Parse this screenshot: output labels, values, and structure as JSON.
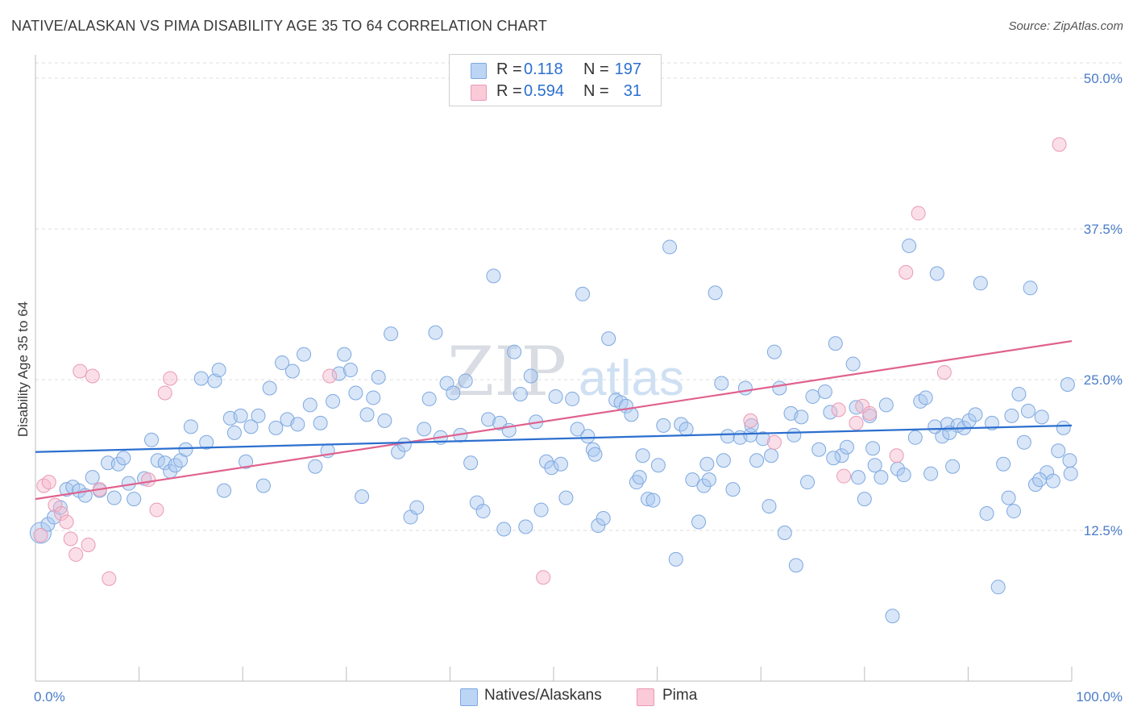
{
  "header": {
    "title": "NATIVE/ALASKAN VS PIMA DISABILITY AGE 35 TO 64 CORRELATION CHART",
    "source": "Source: ZipAtlas.com"
  },
  "watermark": {
    "part1": "ZIP",
    "part2": "atlas"
  },
  "legend": {
    "rows": [
      {
        "r_label": "R =",
        "r_value": "0.118",
        "n_label": "N =",
        "n_value": "197",
        "color": "#a9c8f0"
      },
      {
        "r_label": "R =",
        "r_value": "0.594",
        "n_label": "N =",
        "n_value": "31",
        "color": "#f6b8cb"
      }
    ]
  },
  "bottom_legend": {
    "series1": "Natives/Alaskans",
    "series2": "Pima"
  },
  "chart_data": {
    "type": "scatter",
    "title": "NATIVE/ALASKAN VS PIMA DISABILITY AGE 35 TO 64 CORRELATION CHART",
    "ylabel": "Disability Age 35 to 64",
    "xlabel": "",
    "x_tick_labels": [
      "0.0%",
      "100.0%"
    ],
    "y_tick_labels": [
      "12.5%",
      "25.0%",
      "37.5%",
      "50.0%"
    ],
    "y_ticks": [
      12.5,
      25.0,
      37.5,
      50.0
    ],
    "xlim": [
      0,
      100
    ],
    "ylim": [
      0,
      52
    ],
    "grid": "horizontal dashed",
    "legend_position": "top-center",
    "colors": {
      "natives": "#a9c8f0",
      "natives_line": "#2c6fcf",
      "pima": "#f6b8cb",
      "pima_line": "#e0628e",
      "tick_text": "#4a7cc9"
    },
    "series": [
      {
        "name": "Natives/Alaskans",
        "trend": {
          "x": [
            0,
            100
          ],
          "y": [
            19.0,
            21.2
          ]
        },
        "points": [
          [
            0.5,
            12.3
          ],
          [
            1.2,
            13.0
          ],
          [
            1.8,
            13.6
          ],
          [
            2.4,
            14.4
          ],
          [
            3.0,
            15.9
          ],
          [
            3.6,
            16.1
          ],
          [
            4.2,
            15.8
          ],
          [
            4.8,
            15.4
          ],
          [
            5.5,
            16.9
          ],
          [
            6.2,
            15.8
          ],
          [
            7.0,
            18.1
          ],
          [
            7.6,
            15.2
          ],
          [
            8.0,
            18.0
          ],
          [
            8.5,
            18.5
          ],
          [
            9.0,
            16.4
          ],
          [
            9.5,
            15.1
          ],
          [
            10.5,
            16.8
          ],
          [
            11.2,
            20.0
          ],
          [
            11.8,
            18.3
          ],
          [
            12.5,
            18.1
          ],
          [
            13.0,
            17.4
          ],
          [
            13.5,
            17.9
          ],
          [
            14.0,
            18.3
          ],
          [
            14.5,
            19.2
          ],
          [
            15.0,
            21.1
          ],
          [
            16.0,
            25.1
          ],
          [
            16.5,
            19.8
          ],
          [
            17.3,
            24.9
          ],
          [
            17.7,
            25.8
          ],
          [
            18.2,
            15.8
          ],
          [
            18.8,
            21.8
          ],
          [
            19.2,
            20.6
          ],
          [
            19.8,
            22.0
          ],
          [
            20.3,
            18.2
          ],
          [
            20.8,
            21.1
          ],
          [
            21.5,
            22.0
          ],
          [
            22.0,
            16.2
          ],
          [
            22.6,
            24.3
          ],
          [
            23.2,
            21.0
          ],
          [
            23.8,
            26.4
          ],
          [
            24.3,
            21.7
          ],
          [
            24.8,
            25.7
          ],
          [
            25.3,
            21.3
          ],
          [
            25.9,
            27.1
          ],
          [
            26.5,
            22.9
          ],
          [
            27.0,
            17.8
          ],
          [
            27.5,
            21.4
          ],
          [
            28.2,
            19.1
          ],
          [
            28.7,
            23.2
          ],
          [
            29.3,
            25.5
          ],
          [
            29.8,
            27.1
          ],
          [
            30.4,
            25.8
          ],
          [
            30.9,
            23.9
          ],
          [
            31.5,
            15.3
          ],
          [
            32.0,
            22.1
          ],
          [
            32.6,
            23.5
          ],
          [
            33.1,
            25.2
          ],
          [
            33.7,
            21.6
          ],
          [
            34.3,
            28.8
          ],
          [
            35.0,
            19.0
          ],
          [
            35.6,
            19.6
          ],
          [
            36.2,
            13.6
          ],
          [
            36.8,
            14.4
          ],
          [
            37.5,
            20.9
          ],
          [
            38.0,
            23.4
          ],
          [
            38.6,
            28.9
          ],
          [
            39.1,
            20.2
          ],
          [
            39.7,
            24.7
          ],
          [
            40.3,
            23.9
          ],
          [
            41.0,
            20.4
          ],
          [
            41.5,
            24.9
          ],
          [
            42.0,
            18.1
          ],
          [
            42.6,
            14.8
          ],
          [
            43.2,
            14.1
          ],
          [
            43.7,
            21.7
          ],
          [
            44.2,
            33.6
          ],
          [
            44.8,
            21.4
          ],
          [
            45.2,
            12.6
          ],
          [
            45.7,
            20.8
          ],
          [
            46.2,
            27.3
          ],
          [
            46.8,
            23.8
          ],
          [
            47.3,
            12.8
          ],
          [
            47.8,
            25.3
          ],
          [
            48.3,
            21.5
          ],
          [
            48.8,
            14.2
          ],
          [
            49.3,
            18.2
          ],
          [
            49.8,
            17.7
          ],
          [
            50.2,
            23.6
          ],
          [
            50.7,
            18.0
          ],
          [
            51.2,
            15.2
          ],
          [
            51.8,
            23.4
          ],
          [
            52.3,
            20.9
          ],
          [
            52.8,
            32.1
          ],
          [
            53.3,
            20.3
          ],
          [
            53.8,
            19.2
          ],
          [
            54.3,
            12.9
          ],
          [
            54.8,
            13.5
          ],
          [
            55.3,
            28.4
          ],
          [
            56.0,
            23.3
          ],
          [
            56.5,
            23.1
          ],
          [
            57.0,
            22.8
          ],
          [
            57.5,
            22.1
          ],
          [
            58.0,
            16.5
          ],
          [
            58.6,
            18.7
          ],
          [
            59.1,
            15.1
          ],
          [
            59.6,
            15.0
          ],
          [
            60.1,
            17.9
          ],
          [
            60.6,
            21.2
          ],
          [
            61.2,
            36.0
          ],
          [
            61.8,
            10.1
          ],
          [
            62.3,
            21.3
          ],
          [
            62.8,
            20.9
          ],
          [
            63.4,
            16.7
          ],
          [
            64.0,
            13.2
          ],
          [
            64.5,
            16.2
          ],
          [
            65.0,
            16.7
          ],
          [
            65.6,
            32.2
          ],
          [
            66.2,
            24.7
          ],
          [
            66.8,
            20.3
          ],
          [
            67.3,
            15.9
          ],
          [
            68.0,
            20.2
          ],
          [
            68.5,
            24.3
          ],
          [
            69.0,
            20.4
          ],
          [
            69.6,
            18.3
          ],
          [
            70.2,
            20.1
          ],
          [
            70.8,
            14.5
          ],
          [
            71.3,
            27.3
          ],
          [
            71.8,
            24.3
          ],
          [
            72.3,
            12.3
          ],
          [
            72.9,
            22.2
          ],
          [
            73.4,
            9.6
          ],
          [
            73.9,
            21.9
          ],
          [
            74.5,
            16.5
          ],
          [
            75.0,
            23.6
          ],
          [
            75.6,
            19.2
          ],
          [
            76.2,
            24.0
          ],
          [
            76.7,
            22.3
          ],
          [
            77.2,
            28.0
          ],
          [
            77.8,
            18.7
          ],
          [
            78.3,
            19.4
          ],
          [
            78.9,
            26.3
          ],
          [
            79.4,
            16.9
          ],
          [
            80.0,
            15.1
          ],
          [
            80.5,
            22.0
          ],
          [
            81.0,
            17.9
          ],
          [
            81.6,
            16.9
          ],
          [
            82.1,
            22.9
          ],
          [
            82.7,
            5.4
          ],
          [
            83.2,
            17.6
          ],
          [
            83.8,
            17.1
          ],
          [
            84.3,
            36.1
          ],
          [
            84.9,
            20.2
          ],
          [
            85.4,
            23.2
          ],
          [
            85.9,
            23.5
          ],
          [
            86.4,
            17.2
          ],
          [
            87.0,
            33.8
          ],
          [
            87.5,
            20.3
          ],
          [
            88.0,
            21.3
          ],
          [
            88.5,
            17.8
          ],
          [
            89.0,
            21.2
          ],
          [
            89.6,
            21.0
          ],
          [
            90.1,
            21.6
          ],
          [
            90.7,
            22.1
          ],
          [
            91.2,
            33.0
          ],
          [
            91.8,
            13.9
          ],
          [
            92.3,
            21.4
          ],
          [
            92.9,
            7.8
          ],
          [
            93.4,
            18.0
          ],
          [
            93.9,
            15.2
          ],
          [
            94.4,
            14.1
          ],
          [
            94.9,
            23.8
          ],
          [
            95.4,
            19.8
          ],
          [
            96.0,
            32.6
          ],
          [
            96.5,
            16.3
          ],
          [
            97.1,
            21.9
          ],
          [
            97.6,
            17.3
          ],
          [
            98.2,
            16.6
          ],
          [
            98.7,
            19.1
          ],
          [
            99.2,
            21.0
          ],
          [
            99.6,
            24.6
          ],
          [
            99.8,
            18.3
          ],
          [
            99.9,
            17.2
          ],
          [
            96.9,
            16.7
          ],
          [
            95.8,
            22.4
          ],
          [
            94.2,
            22.0
          ],
          [
            88.2,
            20.6
          ],
          [
            86.8,
            21.1
          ],
          [
            80.8,
            19.3
          ],
          [
            79.2,
            22.7
          ],
          [
            77.0,
            18.5
          ],
          [
            73.2,
            20.4
          ],
          [
            71.0,
            18.7
          ],
          [
            69.1,
            21.2
          ],
          [
            66.4,
            18.3
          ],
          [
            64.8,
            18.0
          ],
          [
            58.3,
            16.9
          ],
          [
            54.0,
            18.8
          ]
        ]
      },
      {
        "name": "Pima",
        "trend": {
          "x": [
            0,
            100
          ],
          "y": [
            15.1,
            28.2
          ]
        },
        "points": [
          [
            0.5,
            12.1
          ],
          [
            0.8,
            16.2
          ],
          [
            1.3,
            16.5
          ],
          [
            1.9,
            14.6
          ],
          [
            2.5,
            13.9
          ],
          [
            3.0,
            13.2
          ],
          [
            3.4,
            11.8
          ],
          [
            3.9,
            10.5
          ],
          [
            4.3,
            25.7
          ],
          [
            5.1,
            11.3
          ],
          [
            5.5,
            25.3
          ],
          [
            6.2,
            15.9
          ],
          [
            7.1,
            8.5
          ],
          [
            10.9,
            16.7
          ],
          [
            11.7,
            14.2
          ],
          [
            12.5,
            23.9
          ],
          [
            13.0,
            25.1
          ],
          [
            28.4,
            25.3
          ],
          [
            49.0,
            8.6
          ],
          [
            69.0,
            21.6
          ],
          [
            71.3,
            19.8
          ],
          [
            77.5,
            22.5
          ],
          [
            78.0,
            17.0
          ],
          [
            79.2,
            21.4
          ],
          [
            79.8,
            22.8
          ],
          [
            80.5,
            22.2
          ],
          [
            83.1,
            18.7
          ],
          [
            84.0,
            33.9
          ],
          [
            85.2,
            38.8
          ],
          [
            87.7,
            25.6
          ],
          [
            98.8,
            44.5
          ]
        ]
      }
    ]
  }
}
